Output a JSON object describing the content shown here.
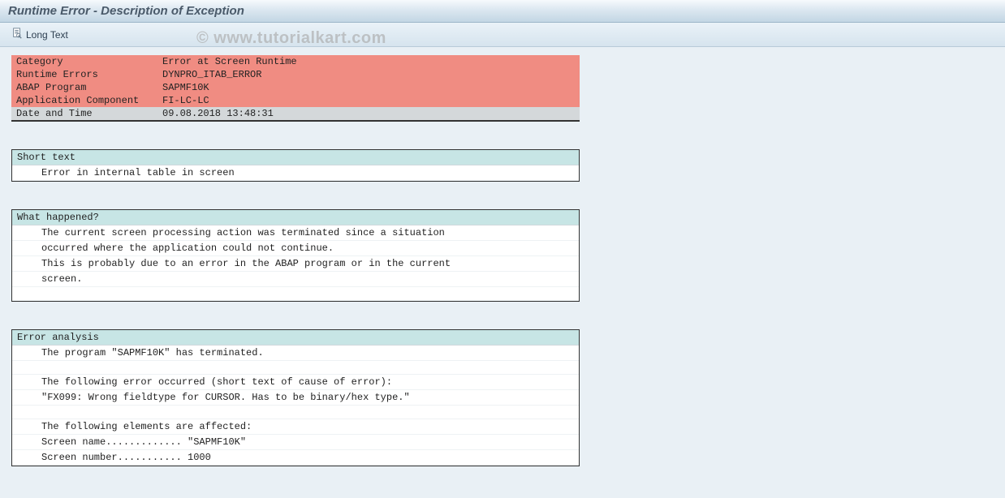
{
  "colors": {
    "titlebar_grad_top": "#f6fafd",
    "titlebar_grad_bottom": "#c3d6e4",
    "toolbar_grad_top": "#eaf2f8",
    "toolbar_grad_bottom": "#d6e4ee",
    "page_bg": "#e9f0f5",
    "header_red": "#f08c82",
    "header_gray": "#d4d8da",
    "section_head": "#c7e5e5",
    "section_border": "#333333",
    "row_divider": "#eef2f4",
    "text": "#222222",
    "watermark": "rgba(170,170,170,0.65)"
  },
  "window": {
    "title": "Runtime Error - Description of Exception"
  },
  "toolbar": {
    "long_text_label": "Long Text"
  },
  "watermark": "© www.tutorialkart.com",
  "header": {
    "rows": [
      {
        "label": "Category",
        "value": "Error at Screen Runtime",
        "style": "red"
      },
      {
        "label": "Runtime Errors",
        "value": "DYNPRO_ITAB_ERROR",
        "style": "red"
      },
      {
        "label": "ABAP Program",
        "value": "SAPMF10K",
        "style": "red"
      },
      {
        "label": "Application Component",
        "value": "FI-LC-LC",
        "style": "red"
      },
      {
        "label": "Date and Time",
        "value": "09.08.2018 13:48:31",
        "style": "gray"
      }
    ]
  },
  "sections": [
    {
      "title": "Short text",
      "lines": [
        "Error in internal table in screen"
      ]
    },
    {
      "title": "What happened?",
      "lines": [
        "The current screen processing action was terminated since a situation",
        "occurred where the application could not continue.",
        "This is probably due to an error in the ABAP program or in the current",
        "screen.",
        ""
      ]
    },
    {
      "title": "Error analysis",
      "lines": [
        "The program \"SAPMF10K\" has terminated.",
        "",
        "The following error occurred (short text of cause of error):",
        "\"FX099: Wrong fieldtype for CURSOR. Has to be binary/hex type.\"",
        "",
        "The following elements are affected:",
        "Screen name............. \"SAPMF10K\"",
        "Screen number........... 1000"
      ]
    }
  ]
}
